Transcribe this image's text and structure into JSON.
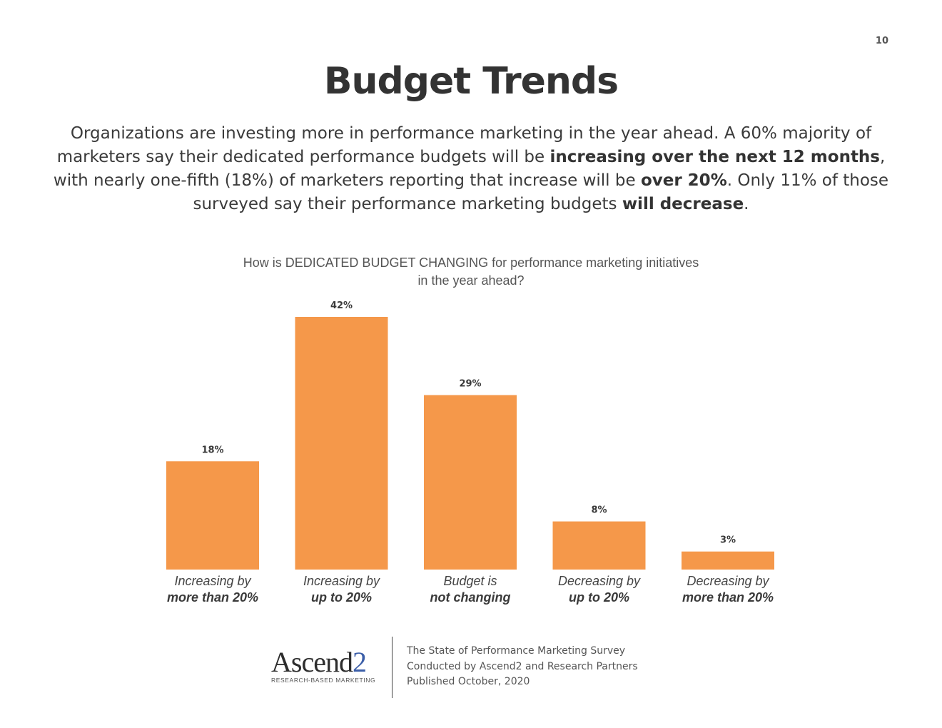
{
  "page_number": "10",
  "title": "Budget Trends",
  "intro": {
    "part1": "Organizations are investing more in performance marketing in the year ahead. A 60% majority of marketers say their dedicated performance budgets will be ",
    "bold1": "increasing over the next 12 months",
    "part2": ", with nearly one-fifth (18%) of marketers reporting that increase will be ",
    "bold2": "over 20%",
    "part3": ". Only 11% of those surveyed say their performance marketing budgets ",
    "bold3": "will decrease",
    "part4": "."
  },
  "chart_data": {
    "type": "bar",
    "title_line1": "How is DEDICATED BUDGET CHANGING for performance marketing initiatives",
    "title_line2": "in the year ahead?",
    "categories": [
      [
        "Increasing by",
        "more than 20%"
      ],
      [
        "Increasing by",
        "up to 20%"
      ],
      [
        "Budget is",
        "not changing"
      ],
      [
        "Decreasing by",
        "up to 20%"
      ],
      [
        "Decreasing by",
        "more than 20%"
      ]
    ],
    "values": [
      18,
      42,
      29,
      8,
      3
    ],
    "value_labels": [
      "18%",
      "42%",
      "29%",
      "8%",
      "3%"
    ],
    "unit": "%",
    "bar_color": "#f5984a",
    "ylim": [
      0,
      42
    ],
    "grid": false,
    "legend": "none"
  },
  "footer": {
    "logo_word": "Ascend",
    "logo_digit": "2",
    "logo_tagline": "RESEARCH-BASED MARKETING",
    "source_lines": [
      "The State of Performance Marketing Survey",
      "Conducted by Ascend2 and Research Partners",
      "Published October, 2020"
    ]
  }
}
